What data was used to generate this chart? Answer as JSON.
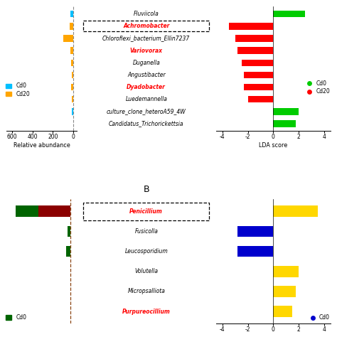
{
  "bacteria_labels": [
    "Fluviicola",
    "Achromobacter",
    "Chloroflexi_bacterium_Ellin7237",
    "Variovorax",
    "Duganella",
    "Angustibacter",
    "Dyadobacter",
    "Luedemannella",
    "culture_clone_heteroA59_4W",
    "Candidatus_Trichorickettsia"
  ],
  "bacteria_bold_italic": [
    "Achromobacter",
    "Variovorax",
    "Dyadobacter"
  ],
  "bacteria_cd0_abundance": [
    30,
    0,
    0,
    0,
    0,
    0,
    0,
    0,
    15,
    0
  ],
  "bacteria_cd20_abundance": [
    0,
    35,
    100,
    30,
    20,
    15,
    20,
    15,
    0,
    0
  ],
  "bacteria_lda_scores": [
    2.5,
    -3.5,
    -3.0,
    -2.8,
    -2.5,
    -2.3,
    -2.3,
    -2.0,
    2.0,
    1.8
  ],
  "bacteria_lda_colors": [
    "green",
    "red",
    "red",
    "red",
    "red",
    "red",
    "red",
    "red",
    "green",
    "green"
  ],
  "fungi_labels": [
    "Penicillium",
    "Fusicolla",
    "Leucosporidium",
    "Volutella",
    "Micropsalliota",
    "Purpureocillium"
  ],
  "fungi_bold_italic": [
    "Penicillium",
    "Purpureocillium"
  ],
  "fungi_cd0_abundance": [
    40,
    5,
    8,
    0,
    0,
    0
  ],
  "fungi_cd20_abundance": [
    55,
    0,
    0,
    0,
    0,
    0
  ],
  "fungi_lda_scores": [
    3.5,
    -2.8,
    -2.8,
    2.0,
    1.8,
    1.5
  ],
  "fungi_lda_colors": [
    "yellow",
    "blue",
    "blue",
    "yellow",
    "yellow",
    "yellow"
  ],
  "bacteria_abund_cd0_color": "#00BFFF",
  "bacteria_abund_cd20_color": "#FFA500",
  "fungi_abund_cd0_color": "#006400",
  "fungi_abund_cd20_color": "#8B0000",
  "lda_green": "#00CC00",
  "lda_red": "#FF0000",
  "lda_blue": "#0000CD",
  "lda_yellow": "#FFD700",
  "abund_xlim_bacteria": 650,
  "abund_xticks_bacteria": [
    600,
    400,
    200,
    0
  ],
  "lda_xlim": 4.5,
  "lda_xticks": [
    -4,
    -2,
    0,
    2,
    4
  ]
}
